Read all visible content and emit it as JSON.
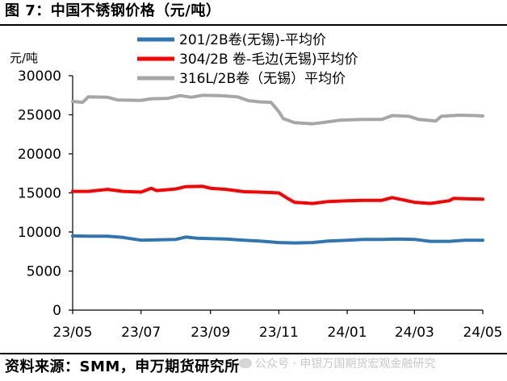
{
  "header": {
    "title": "图 7：中国不锈钢价格（元/吨）"
  },
  "footer": {
    "source": "资料来源：SMM，申万期货研究所",
    "watermark": "公众号 · 申银万国期货宏观金融研究"
  },
  "chart_data": {
    "type": "line",
    "ylabel": "元/吨",
    "xlabel": "",
    "ylim": [
      0,
      30000
    ],
    "yticks": [
      0,
      5000,
      10000,
      15000,
      20000,
      25000,
      30000
    ],
    "ytick_labels": [
      "0",
      "5000",
      "10000",
      "15000",
      "20000",
      "25000",
      "30000"
    ],
    "xlim": [
      "2023-05-01",
      "2024-05-01"
    ],
    "xticks": [
      "2023-05-01",
      "2023-07-01",
      "2023-09-01",
      "2023-11-01",
      "2024-01-01",
      "2024-03-01",
      "2024-05-01"
    ],
    "xtick_labels": [
      "23/05",
      "23/07",
      "23/09",
      "23/11",
      "24/01",
      "24/03",
      "24/05"
    ],
    "legend_position": "top-right",
    "grid": false,
    "series": [
      {
        "name": "201/2B卷(无锡)-平均价",
        "color": "#2e75b6",
        "points": [
          [
            "2023-05-01",
            9500
          ],
          [
            "2023-05-15",
            9450
          ],
          [
            "2023-06-01",
            9450
          ],
          [
            "2023-06-15",
            9300
          ],
          [
            "2023-07-01",
            8950
          ],
          [
            "2023-07-15",
            9000
          ],
          [
            "2023-08-01",
            9050
          ],
          [
            "2023-08-10",
            9350
          ],
          [
            "2023-08-20",
            9200
          ],
          [
            "2023-09-01",
            9150
          ],
          [
            "2023-09-15",
            9100
          ],
          [
            "2023-10-01",
            8950
          ],
          [
            "2023-10-15",
            8850
          ],
          [
            "2023-11-01",
            8650
          ],
          [
            "2023-11-15",
            8600
          ],
          [
            "2023-12-01",
            8650
          ],
          [
            "2023-12-15",
            8850
          ],
          [
            "2024-01-01",
            8950
          ],
          [
            "2024-01-15",
            9050
          ],
          [
            "2024-02-01",
            9050
          ],
          [
            "2024-02-15",
            9100
          ],
          [
            "2024-03-01",
            9050
          ],
          [
            "2024-03-15",
            8800
          ],
          [
            "2024-04-01",
            8800
          ],
          [
            "2024-04-15",
            8950
          ],
          [
            "2024-05-01",
            8950
          ]
        ]
      },
      {
        "name": "304/2B 卷-毛边(无锡)平均价",
        "color": "#ff0000",
        "points": [
          [
            "2023-05-01",
            15200
          ],
          [
            "2023-05-15",
            15200
          ],
          [
            "2023-06-01",
            15450
          ],
          [
            "2023-06-15",
            15200
          ],
          [
            "2023-07-01",
            15100
          ],
          [
            "2023-07-10",
            15600
          ],
          [
            "2023-07-15",
            15300
          ],
          [
            "2023-08-01",
            15500
          ],
          [
            "2023-08-10",
            15800
          ],
          [
            "2023-08-25",
            15850
          ],
          [
            "2023-09-01",
            15600
          ],
          [
            "2023-09-15",
            15450
          ],
          [
            "2023-10-01",
            15150
          ],
          [
            "2023-10-15",
            15100
          ],
          [
            "2023-11-01",
            15000
          ],
          [
            "2023-11-10",
            14200
          ],
          [
            "2023-11-15",
            13800
          ],
          [
            "2023-12-01",
            13650
          ],
          [
            "2023-12-15",
            13900
          ],
          [
            "2024-01-01",
            14000
          ],
          [
            "2024-01-15",
            14050
          ],
          [
            "2024-02-01",
            14050
          ],
          [
            "2024-02-10",
            14400
          ],
          [
            "2024-02-20",
            14100
          ],
          [
            "2024-03-01",
            13800
          ],
          [
            "2024-03-15",
            13650
          ],
          [
            "2024-04-01",
            14000
          ],
          [
            "2024-04-05",
            14300
          ],
          [
            "2024-04-15",
            14250
          ],
          [
            "2024-05-01",
            14200
          ]
        ]
      },
      {
        "name": "316L/2B卷（无锡）平均价",
        "color": "#a6a6a6",
        "points": [
          [
            "2023-05-01",
            26700
          ],
          [
            "2023-05-10",
            26600
          ],
          [
            "2023-05-15",
            27300
          ],
          [
            "2023-06-01",
            27250
          ],
          [
            "2023-06-10",
            26900
          ],
          [
            "2023-07-01",
            26850
          ],
          [
            "2023-07-10",
            27050
          ],
          [
            "2023-07-25",
            27100
          ],
          [
            "2023-08-05",
            27450
          ],
          [
            "2023-08-15",
            27250
          ],
          [
            "2023-08-25",
            27500
          ],
          [
            "2023-09-10",
            27450
          ],
          [
            "2023-09-25",
            27300
          ],
          [
            "2023-10-05",
            26800
          ],
          [
            "2023-10-15",
            26650
          ],
          [
            "2023-10-25",
            26600
          ],
          [
            "2023-11-01",
            25400
          ],
          [
            "2023-11-05",
            24500
          ],
          [
            "2023-11-15",
            24000
          ],
          [
            "2023-12-01",
            23850
          ],
          [
            "2023-12-10",
            24000
          ],
          [
            "2023-12-25",
            24300
          ],
          [
            "2024-01-15",
            24400
          ],
          [
            "2024-02-01",
            24400
          ],
          [
            "2024-02-10",
            24900
          ],
          [
            "2024-02-25",
            24800
          ],
          [
            "2024-03-05",
            24400
          ],
          [
            "2024-03-20",
            24200
          ],
          [
            "2024-03-25",
            24800
          ],
          [
            "2024-04-10",
            24950
          ],
          [
            "2024-04-25",
            24900
          ],
          [
            "2024-05-01",
            24850
          ]
        ]
      }
    ]
  }
}
